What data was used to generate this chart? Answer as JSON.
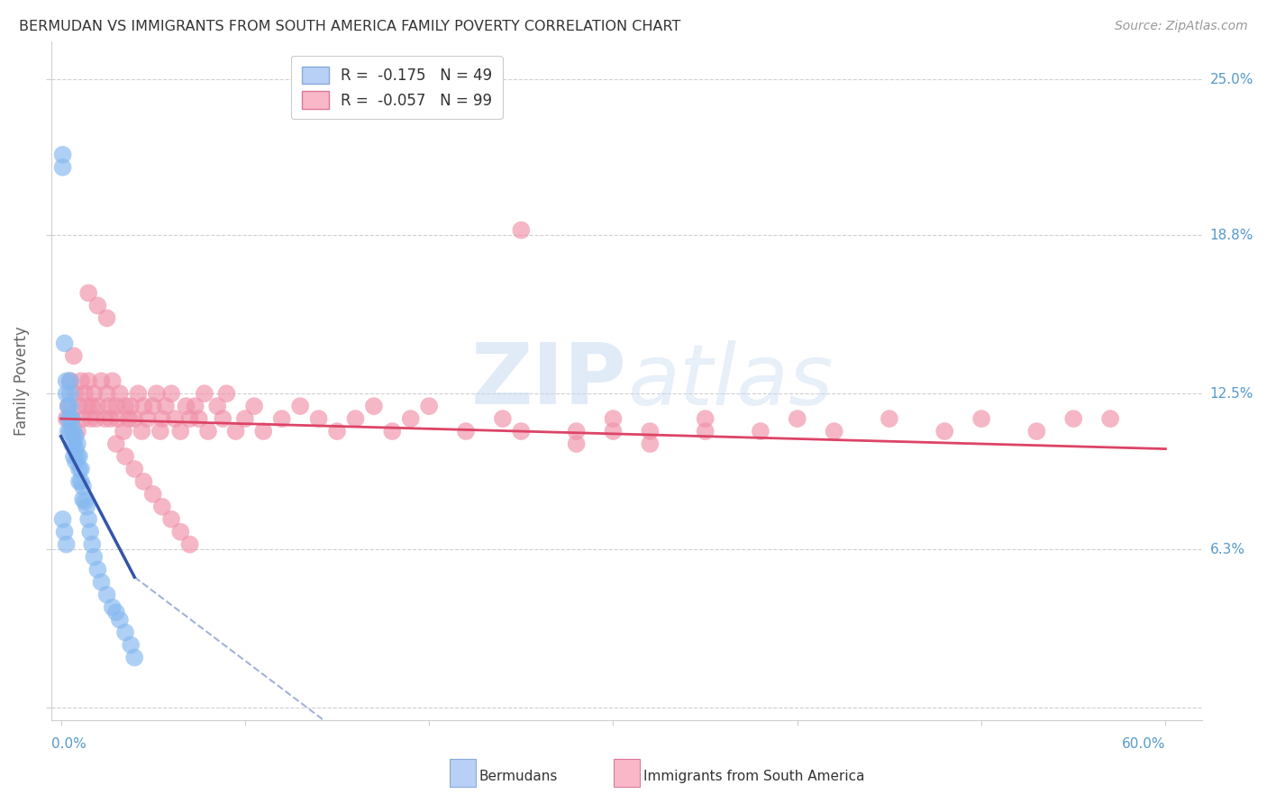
{
  "title": "BERMUDAN VS IMMIGRANTS FROM SOUTH AMERICA FAMILY POVERTY CORRELATION CHART",
  "source": "Source: ZipAtlas.com",
  "ylabel": "Family Poverty",
  "xlim": [
    0.0,
    0.62
  ],
  "ylim": [
    0.0,
    0.265
  ],
  "ytick_vals": [
    0.0,
    0.063,
    0.125,
    0.188,
    0.25
  ],
  "ytick_labels": [
    "",
    "6.3%",
    "12.5%",
    "18.8%",
    "25.0%"
  ],
  "watermark_zip": "ZIP",
  "watermark_atlas": "atlas",
  "bermudan_color": "#85b8f0",
  "bermudan_edge": "#6699dd",
  "immigrant_color": "#f090a8",
  "immigrant_edge": "#e06080",
  "bermudan_line_color": "#3355aa",
  "immigrant_line_color": "#dd4466",
  "legend_blue_fill": "#b8d0f5",
  "legend_pink_fill": "#f8b8c8",
  "legend_R1": "R =  -0.175",
  "legend_N1": "N = 49",
  "legend_R2": "R =  -0.057",
  "legend_N2": "N = 99",
  "tick_color": "#5599cc",
  "bermudan_x": [
    0.001,
    0.001,
    0.002,
    0.003,
    0.003,
    0.004,
    0.004,
    0.004,
    0.005,
    0.005,
    0.005,
    0.005,
    0.005,
    0.006,
    0.006,
    0.006,
    0.007,
    0.007,
    0.007,
    0.008,
    0.008,
    0.008,
    0.009,
    0.009,
    0.01,
    0.01,
    0.01,
    0.011,
    0.011,
    0.012,
    0.012,
    0.013,
    0.014,
    0.015,
    0.016,
    0.017,
    0.018,
    0.02,
    0.022,
    0.025,
    0.028,
    0.03,
    0.032,
    0.035,
    0.038,
    0.04,
    0.001,
    0.002,
    0.003
  ],
  "bermudan_y": [
    0.22,
    0.215,
    0.145,
    0.13,
    0.125,
    0.12,
    0.115,
    0.11,
    0.13,
    0.125,
    0.12,
    0.115,
    0.11,
    0.115,
    0.11,
    0.105,
    0.11,
    0.105,
    0.1,
    0.108,
    0.103,
    0.098,
    0.105,
    0.1,
    0.1,
    0.095,
    0.09,
    0.095,
    0.09,
    0.088,
    0.083,
    0.082,
    0.08,
    0.075,
    0.07,
    0.065,
    0.06,
    0.055,
    0.05,
    0.045,
    0.04,
    0.038,
    0.035,
    0.03,
    0.025,
    0.02,
    0.075,
    0.07,
    0.065
  ],
  "immigrant_x": [
    0.003,
    0.004,
    0.005,
    0.006,
    0.007,
    0.008,
    0.009,
    0.01,
    0.011,
    0.012,
    0.013,
    0.014,
    0.015,
    0.016,
    0.017,
    0.018,
    0.019,
    0.02,
    0.022,
    0.024,
    0.025,
    0.026,
    0.027,
    0.028,
    0.03,
    0.031,
    0.032,
    0.034,
    0.035,
    0.037,
    0.038,
    0.04,
    0.042,
    0.044,
    0.045,
    0.047,
    0.05,
    0.052,
    0.054,
    0.055,
    0.057,
    0.06,
    0.062,
    0.065,
    0.068,
    0.07,
    0.073,
    0.075,
    0.078,
    0.08,
    0.085,
    0.088,
    0.09,
    0.095,
    0.1,
    0.105,
    0.11,
    0.12,
    0.13,
    0.14,
    0.15,
    0.16,
    0.17,
    0.18,
    0.19,
    0.2,
    0.22,
    0.24,
    0.25,
    0.28,
    0.3,
    0.32,
    0.35,
    0.38,
    0.4,
    0.42,
    0.45,
    0.48,
    0.5,
    0.53,
    0.55,
    0.57,
    0.015,
    0.02,
    0.025,
    0.03,
    0.035,
    0.04,
    0.045,
    0.05,
    0.055,
    0.06,
    0.065,
    0.07,
    0.25,
    0.28,
    0.3,
    0.32,
    0.35
  ],
  "immigrant_y": [
    0.115,
    0.12,
    0.13,
    0.115,
    0.14,
    0.125,
    0.11,
    0.12,
    0.13,
    0.115,
    0.125,
    0.12,
    0.13,
    0.115,
    0.12,
    0.125,
    0.115,
    0.12,
    0.13,
    0.115,
    0.125,
    0.12,
    0.115,
    0.13,
    0.12,
    0.115,
    0.125,
    0.11,
    0.12,
    0.115,
    0.12,
    0.115,
    0.125,
    0.11,
    0.12,
    0.115,
    0.12,
    0.125,
    0.11,
    0.115,
    0.12,
    0.125,
    0.115,
    0.11,
    0.12,
    0.115,
    0.12,
    0.115,
    0.125,
    0.11,
    0.12,
    0.115,
    0.125,
    0.11,
    0.115,
    0.12,
    0.11,
    0.115,
    0.12,
    0.115,
    0.11,
    0.115,
    0.12,
    0.11,
    0.115,
    0.12,
    0.11,
    0.115,
    0.19,
    0.11,
    0.115,
    0.11,
    0.115,
    0.11,
    0.115,
    0.11,
    0.115,
    0.11,
    0.115,
    0.11,
    0.115,
    0.115,
    0.165,
    0.16,
    0.155,
    0.105,
    0.1,
    0.095,
    0.09,
    0.085,
    0.08,
    0.075,
    0.07,
    0.065,
    0.11,
    0.105,
    0.11,
    0.105,
    0.11
  ]
}
